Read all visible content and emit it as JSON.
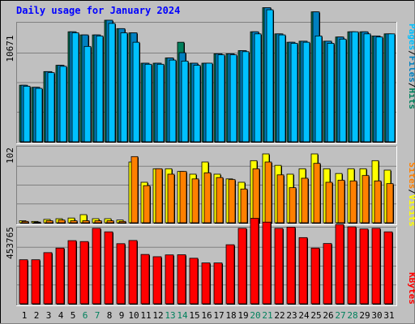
{
  "title": "Daily usage for January 2024",
  "colors": {
    "background": "#C0C0C0",
    "panel": "#C0C0C0",
    "title": "#0000FF",
    "hits": "#00805C",
    "files": "#0080C0",
    "pages": "#00C0FF",
    "visits": "#FFFF00",
    "sites": "#FF8000",
    "kbytes": "#FF0000",
    "weekend": "#00805C",
    "weekday": "#000000",
    "separator": "#000000"
  },
  "chart_data": [
    {
      "type": "bar",
      "panel": "hits-files-pages",
      "ytick": "10671",
      "ymax": 10671,
      "legend": [
        "Pages",
        "/",
        "Files",
        "/",
        "Hits"
      ],
      "series": [
        {
          "name": "Hits",
          "color": "#00805C",
          "values": [
            5400,
            5200,
            6700,
            7300,
            10500,
            10200,
            10200,
            11600,
            10800,
            10400,
            7500,
            7500,
            8000,
            9500,
            7500,
            7500,
            8400,
            8400,
            8700,
            10500,
            12800,
            10300,
            9500,
            9600,
            12400,
            9600,
            10000,
            10500,
            10500,
            10100,
            10300
          ]
        },
        {
          "name": "Files",
          "color": "#0080C0",
          "values": [
            5400,
            5200,
            6700,
            7300,
            10500,
            10200,
            10200,
            11600,
            10800,
            10400,
            7500,
            7500,
            8000,
            8500,
            7500,
            7500,
            8400,
            8400,
            8700,
            10500,
            12800,
            10300,
            9500,
            9600,
            12400,
            9600,
            10000,
            10500,
            10500,
            10100,
            10300
          ]
        },
        {
          "name": "Pages",
          "color": "#00C0FF",
          "values": [
            5300,
            5100,
            6600,
            7200,
            10400,
            9100,
            10100,
            11300,
            10400,
            9500,
            7400,
            7400,
            7800,
            7700,
            7300,
            7500,
            8300,
            8300,
            8600,
            10300,
            12600,
            10200,
            9400,
            9500,
            10100,
            9400,
            9800,
            10500,
            10300,
            10000,
            10300
          ]
        }
      ]
    },
    {
      "type": "bar",
      "panel": "visits-sites",
      "ytick": "102",
      "ymax": 102,
      "legend": [
        "Sites",
        "/",
        "Visits"
      ],
      "series": [
        {
          "name": "Visits",
          "color": "#FFFF00",
          "values": [
            3,
            2,
            5,
            6,
            7,
            12,
            6,
            6,
            4,
            90,
            60,
            80,
            80,
            76,
            72,
            90,
            72,
            65,
            60,
            92,
            102,
            85,
            72,
            80,
            102,
            80,
            73,
            80,
            80,
            92,
            78
          ]
        },
        {
          "name": "Sites",
          "color": "#FF8000",
          "values": [
            2,
            1,
            3,
            4,
            3,
            3,
            3,
            3,
            2,
            98,
            55,
            80,
            72,
            76,
            65,
            74,
            67,
            64,
            50,
            80,
            90,
            71,
            52,
            66,
            88,
            60,
            63,
            62,
            70,
            62,
            58
          ]
        }
      ]
    },
    {
      "type": "bar",
      "panel": "kbytes",
      "ytick": "453765",
      "ymax": 453765,
      "legend": [
        "KBytes"
      ],
      "series": [
        {
          "name": "KBytes",
          "color": "#FF0000",
          "values": [
            290000,
            290000,
            337000,
            367000,
            416000,
            410000,
            497000,
            474000,
            396000,
            417000,
            325000,
            310000,
            322000,
            323000,
            300000,
            269000,
            269000,
            389000,
            497000,
            563000,
            538000,
            497000,
            505000,
            436000,
            367000,
            397000,
            522000,
            507000,
            493000,
            497000,
            474000
          ]
        }
      ]
    }
  ],
  "days": [
    "1",
    "2",
    "3",
    "4",
    "5",
    "6",
    "7",
    "8",
    "9",
    "10",
    "11",
    "12",
    "13",
    "14",
    "15",
    "16",
    "17",
    "18",
    "19",
    "20",
    "21",
    "22",
    "23",
    "24",
    "25",
    "26",
    "27",
    "28",
    "29",
    "30",
    "31"
  ],
  "weekend_days": [
    6,
    7,
    13,
    14,
    20,
    21,
    27,
    28
  ]
}
